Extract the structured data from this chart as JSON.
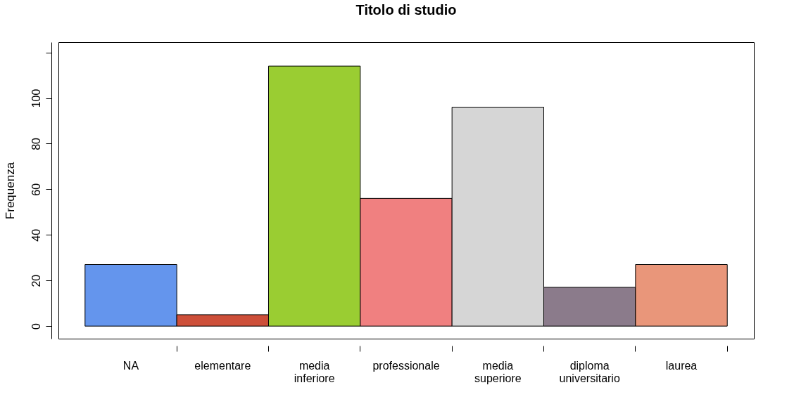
{
  "chart_data": {
    "type": "bar",
    "title": "Titolo di studio",
    "ylabel": "Frequenza",
    "categories": [
      "NA",
      "elementare",
      "media\ninferiore",
      "professionale",
      "media\nsuperiore",
      "diploma\nuniversitario",
      "laurea"
    ],
    "values": [
      27,
      5,
      114,
      56,
      96,
      17,
      27
    ],
    "colors": [
      "#6495ed",
      "#cd4f39",
      "#9acd32",
      "#f08080",
      "#d6d6d6",
      "#8b7b8b",
      "#e9967a"
    ],
    "ylim": [
      -5.5,
      124.5
    ],
    "yticks": [
      0,
      20,
      40,
      60,
      80,
      100,
      {
        "value": 120,
        "label": null
      }
    ],
    "grid": false
  }
}
